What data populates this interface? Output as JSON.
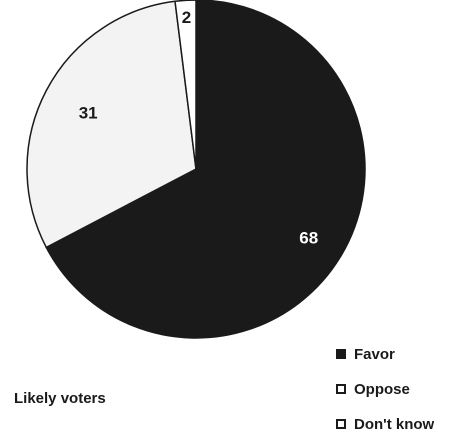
{
  "chart_data": {
    "type": "pie",
    "title": "",
    "slices": [
      {
        "label": "Favor",
        "value": 68,
        "color": "#1a1a1a",
        "label_color": "#ffffff"
      },
      {
        "label": "Oppose",
        "value": 31,
        "color": "#f3f3f3",
        "label_color": "#1a1a1a"
      },
      {
        "label": "Don't know",
        "value": 2,
        "color": "#ffffff",
        "label_color": "#1a1a1a"
      }
    ],
    "data_labels": [
      "68",
      "31",
      "2"
    ],
    "legend_position": "bottom-right"
  },
  "caption": "Likely voters",
  "legend": {
    "items": [
      {
        "label": "Favor",
        "color": "#1a1a1a"
      },
      {
        "label": "Oppose",
        "color": "#ffffff"
      },
      {
        "label": "Don't know",
        "color": "#ffffff"
      }
    ]
  }
}
